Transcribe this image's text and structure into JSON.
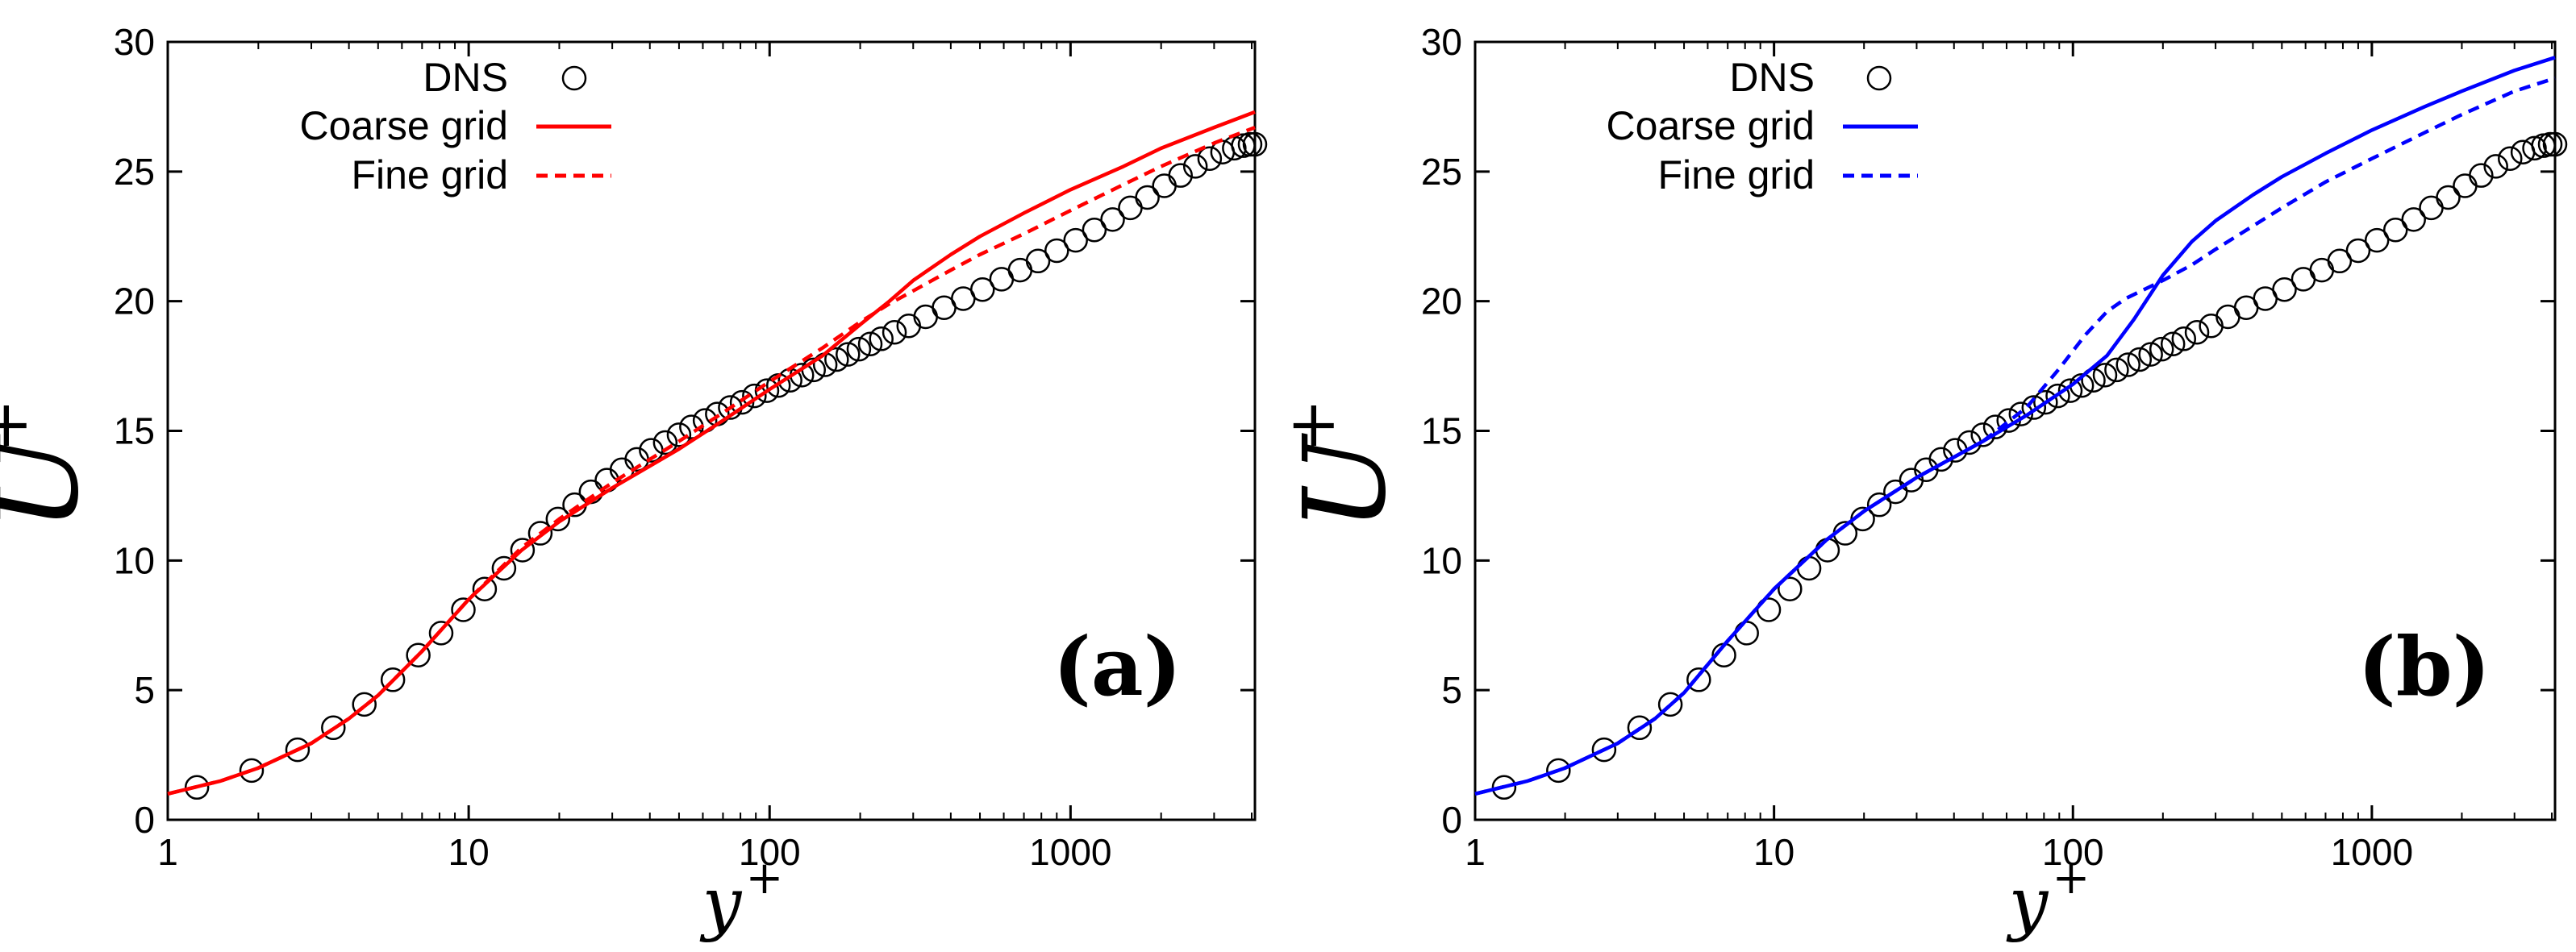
{
  "chart_data": [
    {
      "type": "line",
      "panel_label": "(a)",
      "xlabel": "y",
      "xlabel_sup": "+",
      "ylabel": "U",
      "ylabel_sup": "+",
      "xscale": "log",
      "xlim": [
        1,
        4100
      ],
      "ylim": [
        0,
        30
      ],
      "xticks": [
        1,
        10,
        100,
        1000
      ],
      "xtick_labels": [
        "1",
        "10",
        "100",
        "1000"
      ],
      "yticks": [
        0,
        5,
        10,
        15,
        20,
        25,
        30
      ],
      "ytick_labels": [
        "0",
        "5",
        "10",
        "15",
        "20",
        "25",
        "30"
      ],
      "legend_position": "top-left",
      "series": [
        {
          "name": "DNS",
          "style": "markers",
          "color": "#000000",
          "x": [
            1.25,
            1.9,
            2.7,
            3.55,
            4.5,
            5.6,
            6.8,
            8.1,
            9.6,
            11.3,
            13.1,
            15.1,
            17.3,
            19.8,
            22.5,
            25.5,
            28.8,
            32.3,
            36.2,
            40.4,
            45,
            50,
            55,
            61,
            67,
            74,
            81,
            89,
            98,
            107,
            117,
            128,
            140,
            153,
            167,
            182,
            198,
            216,
            235,
            260,
            290,
            330,
            380,
            440,
            510,
            590,
            680,
            780,
            900,
            1040,
            1200,
            1380,
            1580,
            1800,
            2050,
            2320,
            2600,
            2900,
            3200,
            3500,
            3750,
            3950,
            4100
          ],
          "y": [
            1.25,
            1.9,
            2.7,
            3.55,
            4.45,
            5.4,
            6.35,
            7.2,
            8.1,
            8.9,
            9.7,
            10.4,
            11.05,
            11.6,
            12.15,
            12.65,
            13.1,
            13.5,
            13.9,
            14.25,
            14.55,
            14.85,
            15.15,
            15.4,
            15.65,
            15.9,
            16.1,
            16.35,
            16.55,
            16.75,
            16.95,
            17.15,
            17.35,
            17.55,
            17.75,
            17.95,
            18.15,
            18.35,
            18.55,
            18.8,
            19.05,
            19.4,
            19.75,
            20.1,
            20.45,
            20.85,
            21.2,
            21.55,
            21.95,
            22.35,
            22.75,
            23.15,
            23.6,
            24.0,
            24.45,
            24.85,
            25.2,
            25.5,
            25.75,
            25.9,
            26.0,
            26.05,
            26.05
          ]
        },
        {
          "name": "Coarse grid",
          "style": "solid",
          "color": "#ff0000",
          "x": [
            1,
            1.5,
            2,
            3,
            4,
            5,
            7,
            10,
            15,
            20,
            30,
            50,
            70,
            100,
            150,
            200,
            250,
            300,
            400,
            500,
            700,
            1000,
            1500,
            2000,
            3000,
            4100
          ],
          "y": [
            1.0,
            1.5,
            2.0,
            2.95,
            3.9,
            4.8,
            6.5,
            8.5,
            10.4,
            11.5,
            12.8,
            14.3,
            15.4,
            16.6,
            17.9,
            19.1,
            20.0,
            20.8,
            21.8,
            22.5,
            23.4,
            24.3,
            25.2,
            25.9,
            26.7,
            27.3
          ]
        },
        {
          "name": "Fine grid",
          "style": "dashed",
          "color": "#ff0000",
          "x": [
            1,
            1.5,
            2,
            3,
            4,
            5,
            7,
            10,
            15,
            20,
            30,
            50,
            70,
            100,
            150,
            200,
            250,
            300,
            400,
            500,
            700,
            1000,
            1500,
            2000,
            3000,
            4100
          ],
          "y": [
            1.0,
            1.5,
            2.0,
            2.95,
            3.9,
            4.8,
            6.5,
            8.5,
            10.5,
            11.6,
            13.0,
            14.6,
            15.7,
            16.9,
            18.2,
            19.2,
            19.9,
            20.4,
            21.2,
            21.8,
            22.6,
            23.5,
            24.5,
            25.2,
            26.1,
            26.7
          ]
        }
      ]
    },
    {
      "type": "line",
      "panel_label": "(b)",
      "xlabel": "y",
      "xlabel_sup": "+",
      "ylabel": "U",
      "ylabel_sup": "+",
      "xscale": "log",
      "xlim": [
        1,
        4100
      ],
      "ylim": [
        0,
        30
      ],
      "xticks": [
        1,
        10,
        100,
        1000
      ],
      "xtick_labels": [
        "1",
        "10",
        "100",
        "1000"
      ],
      "yticks": [
        0,
        5,
        10,
        15,
        20,
        25,
        30
      ],
      "ytick_labels": [
        "0",
        "5",
        "10",
        "15",
        "20",
        "25",
        "30"
      ],
      "legend_position": "top-left",
      "series": [
        {
          "name": "DNS",
          "style": "markers",
          "color": "#000000",
          "x": [
            1.25,
            1.9,
            2.7,
            3.55,
            4.5,
            5.6,
            6.8,
            8.1,
            9.6,
            11.3,
            13.1,
            15.1,
            17.3,
            19.8,
            22.5,
            25.5,
            28.8,
            32.3,
            36.2,
            40.4,
            45,
            50,
            55,
            61,
            67,
            74,
            81,
            89,
            98,
            107,
            117,
            128,
            140,
            153,
            167,
            182,
            198,
            216,
            235,
            260,
            290,
            330,
            380,
            440,
            510,
            590,
            680,
            780,
            900,
            1040,
            1200,
            1380,
            1580,
            1800,
            2050,
            2320,
            2600,
            2900,
            3200,
            3500,
            3750,
            3950,
            4100
          ],
          "y": [
            1.25,
            1.9,
            2.7,
            3.55,
            4.45,
            5.4,
            6.35,
            7.2,
            8.1,
            8.9,
            9.7,
            10.4,
            11.05,
            11.6,
            12.15,
            12.65,
            13.1,
            13.5,
            13.9,
            14.25,
            14.55,
            14.85,
            15.15,
            15.4,
            15.65,
            15.9,
            16.1,
            16.35,
            16.55,
            16.75,
            16.95,
            17.15,
            17.35,
            17.55,
            17.75,
            17.95,
            18.15,
            18.35,
            18.55,
            18.8,
            19.05,
            19.4,
            19.75,
            20.1,
            20.45,
            20.85,
            21.2,
            21.55,
            21.95,
            22.35,
            22.75,
            23.15,
            23.6,
            24.0,
            24.45,
            24.85,
            25.2,
            25.5,
            25.75,
            25.9,
            26.0,
            26.05,
            26.05
          ]
        },
        {
          "name": "Coarse grid",
          "style": "solid",
          "color": "#0000ff",
          "x": [
            1,
            1.5,
            2,
            3,
            4,
            5,
            7,
            10,
            15,
            20,
            30,
            50,
            70,
            100,
            130,
            160,
            200,
            250,
            300,
            400,
            500,
            700,
            1000,
            1500,
            2000,
            3000,
            4100
          ],
          "y": [
            1.0,
            1.5,
            2.0,
            2.95,
            3.9,
            4.9,
            6.9,
            8.9,
            10.8,
            11.9,
            13.2,
            14.6,
            15.6,
            16.8,
            17.9,
            19.3,
            21.0,
            22.3,
            23.1,
            24.1,
            24.8,
            25.7,
            26.6,
            27.5,
            28.1,
            28.9,
            29.4
          ]
        },
        {
          "name": "Fine grid",
          "style": "dashed",
          "color": "#0000ff",
          "x": [
            1,
            1.5,
            2,
            3,
            4,
            5,
            7,
            10,
            15,
            20,
            30,
            50,
            70,
            90,
            110,
            130,
            150,
            200,
            250,
            300,
            400,
            500,
            700,
            1000,
            1500,
            2000,
            3000,
            4100
          ],
          "y": [
            1.0,
            1.5,
            2.0,
            2.95,
            3.9,
            4.9,
            6.9,
            8.9,
            10.8,
            11.9,
            13.2,
            14.6,
            15.9,
            17.4,
            18.7,
            19.6,
            20.1,
            20.8,
            21.4,
            22.0,
            22.9,
            23.6,
            24.6,
            25.5,
            26.5,
            27.2,
            28.1,
            28.6
          ]
        }
      ]
    }
  ]
}
